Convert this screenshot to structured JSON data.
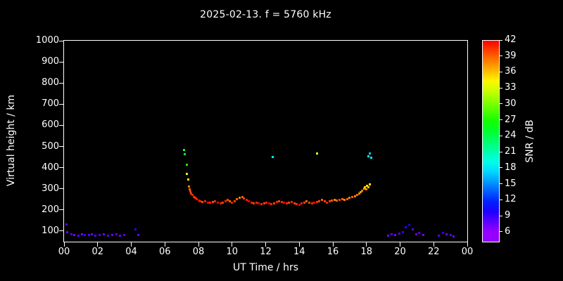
{
  "title": "2025-02-13. f = 5760 kHz",
  "axes": {
    "x_label": "UT Time / hrs",
    "y_label": "Virtual height / km",
    "x_range": [
      0,
      24
    ],
    "y_range": [
      50,
      1000
    ],
    "x_tick_values": [
      0,
      2,
      4,
      6,
      8,
      10,
      12,
      14,
      16,
      18,
      20,
      22,
      24
    ],
    "x_tick_labels": [
      "00",
      "02",
      "04",
      "06",
      "08",
      "10",
      "12",
      "14",
      "16",
      "18",
      "20",
      "22",
      "00"
    ],
    "y_tick_values": [
      100,
      200,
      300,
      400,
      500,
      600,
      700,
      800,
      900,
      1000
    ],
    "y_tick_labels": [
      "100",
      "200",
      "300",
      "400",
      "500",
      "600",
      "700",
      "800",
      "900",
      "1000"
    ]
  },
  "colorbar": {
    "label": "SNR / dB",
    "tick_values": [
      6,
      9,
      12,
      15,
      18,
      21,
      24,
      27,
      30,
      33,
      36,
      39,
      42
    ],
    "range": [
      4,
      42
    ],
    "min_color": "#8b00ff",
    "max_color": "#ff0000"
  },
  "chart_data": {
    "type": "scatter",
    "title": "2025-02-13. f = 5760 kHz",
    "xlabel": "UT Time / hrs",
    "ylabel": "Virtual height / km",
    "xlim": [
      0,
      24
    ],
    "ylim": [
      50,
      1000
    ],
    "grid": false,
    "colorbar_label": "SNR / dB",
    "colorbar_range": [
      6,
      42
    ],
    "point_format": [
      "ut_hours",
      "virtual_height_km",
      "snr_db"
    ],
    "points": [
      [
        0.15,
        130,
        8
      ],
      [
        0.2,
        96,
        7
      ],
      [
        0.45,
        84,
        8
      ],
      [
        0.6,
        80,
        7
      ],
      [
        0.85,
        78,
        8
      ],
      [
        1.05,
        86,
        7
      ],
      [
        1.25,
        80,
        9
      ],
      [
        1.5,
        80,
        8
      ],
      [
        1.65,
        84,
        7
      ],
      [
        1.85,
        78,
        8
      ],
      [
        2.1,
        80,
        8
      ],
      [
        2.35,
        84,
        7
      ],
      [
        2.6,
        78,
        8
      ],
      [
        2.85,
        80,
        7
      ],
      [
        3.1,
        84,
        8
      ],
      [
        3.35,
        78,
        7
      ],
      [
        3.6,
        80,
        8
      ],
      [
        4.25,
        108,
        9
      ],
      [
        4.4,
        82,
        7
      ],
      [
        7.15,
        485,
        24
      ],
      [
        7.2,
        462,
        25
      ],
      [
        7.3,
        415,
        27
      ],
      [
        7.32,
        372,
        33
      ],
      [
        7.38,
        345,
        35
      ],
      [
        7.42,
        312,
        38
      ],
      [
        7.48,
        296,
        39
      ],
      [
        7.52,
        286,
        40
      ],
      [
        7.58,
        278,
        40
      ],
      [
        7.64,
        270,
        41
      ],
      [
        7.72,
        262,
        41
      ],
      [
        7.8,
        256,
        40
      ],
      [
        7.9,
        250,
        41
      ],
      [
        8.0,
        244,
        42
      ],
      [
        8.12,
        240,
        41
      ],
      [
        8.25,
        238,
        40
      ],
      [
        8.4,
        242,
        41
      ],
      [
        8.55,
        236,
        42
      ],
      [
        8.7,
        233,
        41
      ],
      [
        8.85,
        238,
        40
      ],
      [
        9.0,
        242,
        41
      ],
      [
        9.15,
        236,
        42
      ],
      [
        9.3,
        231,
        41
      ],
      [
        9.45,
        235,
        40
      ],
      [
        9.6,
        241,
        41
      ],
      [
        9.72,
        247,
        40
      ],
      [
        9.85,
        241,
        39
      ],
      [
        10.0,
        236,
        41
      ],
      [
        10.15,
        242,
        40
      ],
      [
        10.3,
        252,
        39
      ],
      [
        10.45,
        258,
        38
      ],
      [
        10.6,
        262,
        39
      ],
      [
        10.72,
        255,
        40
      ],
      [
        10.85,
        246,
        41
      ],
      [
        11.0,
        240,
        42
      ],
      [
        11.15,
        236,
        41
      ],
      [
        11.3,
        232,
        40
      ],
      [
        11.45,
        236,
        41
      ],
      [
        11.6,
        230,
        42
      ],
      [
        11.75,
        228,
        41
      ],
      [
        11.9,
        232,
        40
      ],
      [
        12.05,
        236,
        41
      ],
      [
        12.2,
        230,
        42
      ],
      [
        12.35,
        228,
        41
      ],
      [
        12.5,
        232,
        40
      ],
      [
        12.65,
        238,
        41
      ],
      [
        12.8,
        242,
        40
      ],
      [
        12.95,
        238,
        41
      ],
      [
        13.1,
        234,
        42
      ],
      [
        13.25,
        230,
        41
      ],
      [
        13.4,
        234,
        40
      ],
      [
        13.55,
        238,
        41
      ],
      [
        13.7,
        232,
        40
      ],
      [
        13.85,
        228,
        41
      ],
      [
        14.0,
        226,
        42
      ],
      [
        14.15,
        230,
        41
      ],
      [
        14.3,
        236,
        40
      ],
      [
        14.45,
        242,
        39
      ],
      [
        14.6,
        236,
        40
      ],
      [
        14.75,
        230,
        41
      ],
      [
        14.9,
        234,
        42
      ],
      [
        15.05,
        238,
        41
      ],
      [
        15.2,
        242,
        40
      ],
      [
        15.35,
        246,
        39
      ],
      [
        15.5,
        240,
        40
      ],
      [
        15.65,
        236,
        41
      ],
      [
        15.8,
        240,
        40
      ],
      [
        15.95,
        244,
        39
      ],
      [
        16.1,
        248,
        38
      ],
      [
        16.25,
        244,
        39
      ],
      [
        16.4,
        248,
        40
      ],
      [
        16.55,
        252,
        39
      ],
      [
        16.7,
        248,
        38
      ],
      [
        16.85,
        252,
        39
      ],
      [
        17.0,
        256,
        38
      ],
      [
        17.15,
        260,
        39
      ],
      [
        17.3,
        265,
        38
      ],
      [
        17.45,
        270,
        39
      ],
      [
        17.55,
        276,
        38
      ],
      [
        17.65,
        284,
        37
      ],
      [
        17.75,
        292,
        38
      ],
      [
        17.85,
        300,
        37
      ],
      [
        17.92,
        308,
        36
      ],
      [
        18.0,
        298,
        38
      ],
      [
        18.05,
        315,
        35
      ],
      [
        18.12,
        306,
        36
      ],
      [
        18.18,
        320,
        34
      ],
      [
        18.1,
        452,
        18
      ],
      [
        18.2,
        468,
        17
      ],
      [
        18.28,
        448,
        19
      ],
      [
        12.42,
        450,
        18
      ],
      [
        15.05,
        466,
        34
      ],
      [
        19.3,
        78,
        7
      ],
      [
        19.5,
        84,
        8
      ],
      [
        19.7,
        80,
        7
      ],
      [
        19.95,
        88,
        8
      ],
      [
        20.15,
        94,
        9
      ],
      [
        20.35,
        118,
        9
      ],
      [
        20.55,
        128,
        10
      ],
      [
        20.75,
        108,
        8
      ],
      [
        20.95,
        84,
        7
      ],
      [
        21.15,
        90,
        8
      ],
      [
        21.4,
        80,
        7
      ],
      [
        22.3,
        78,
        8
      ],
      [
        22.55,
        92,
        9
      ],
      [
        22.75,
        84,
        7
      ],
      [
        23.0,
        80,
        8
      ],
      [
        23.2,
        76,
        7
      ]
    ]
  }
}
